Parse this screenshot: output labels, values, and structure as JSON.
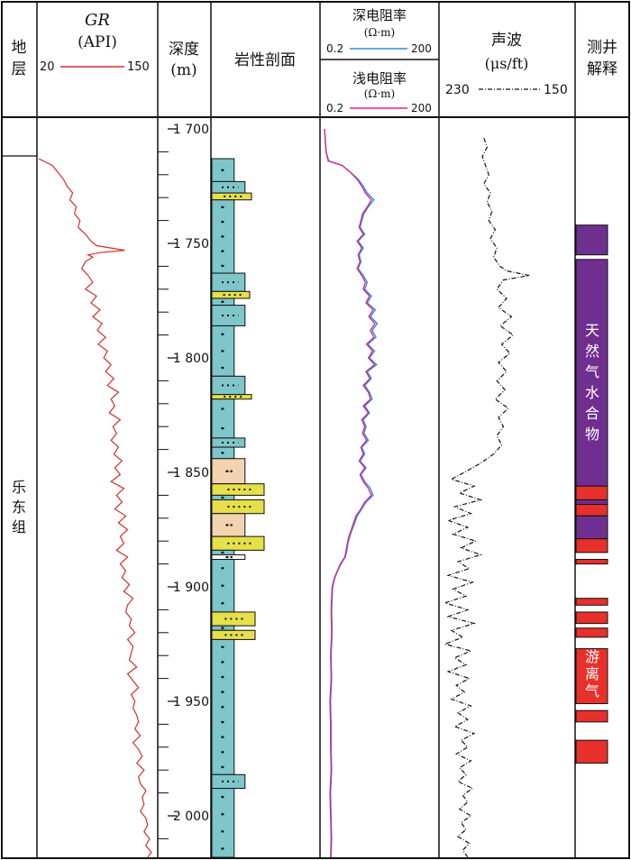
{
  "headers": {
    "formation": [
      "地",
      "层"
    ],
    "gr": {
      "title": "GR",
      "unit": "(API)",
      "min": "20",
      "max": "150"
    },
    "depth": {
      "title": "深度",
      "unit": "(m)"
    },
    "lithology": "岩性剖面",
    "deep_res": {
      "title": "深电阻率",
      "unit": "(Ω·m)",
      "min": "0.2",
      "max": "200"
    },
    "shallow_res": {
      "title": "浅电阻率",
      "unit": "(Ω·m)",
      "min": "0.2",
      "max": "200"
    },
    "sonic": {
      "title": "声波",
      "unit": "(μs/ft)",
      "min": "230",
      "max": "150"
    },
    "interp": [
      "测井",
      "解释"
    ]
  },
  "formation_name": [
    "乐",
    "东",
    "组"
  ],
  "depth_ticks": [
    "1 700",
    "1 750",
    "1 800",
    "1 850",
    "1 900",
    "1 950",
    "2 000"
  ],
  "interp_labels": {
    "hydrate": [
      "天",
      "然",
      "气",
      "水",
      "合",
      "物"
    ],
    "free_gas": [
      "游",
      "离",
      "气"
    ]
  },
  "colors": {
    "gr_curve": "#d0302a",
    "deep_curve": "#2a8fd6",
    "shallow_curve": "#e0208a",
    "sonic_curve": "#111111",
    "shale": "#7ec6c9",
    "sand_yellow": "#e6e04a",
    "sand_tan": "#f3d3b0",
    "hydrate": "#6f2f8f",
    "free_gas": "#e8302a"
  },
  "chart_data": {
    "type": "well-log",
    "depth_unit": "m",
    "depth_range": [
      1700,
      2020
    ],
    "formation_top": 1713,
    "gr": {
      "range": [
        20,
        150
      ],
      "depth": [
        1713,
        1716,
        1719,
        1722,
        1725,
        1728,
        1731,
        1734,
        1737,
        1740,
        1743,
        1746,
        1749,
        1751,
        1752,
        1753,
        1754,
        1755,
        1756,
        1758,
        1761,
        1764,
        1767,
        1770,
        1773,
        1776,
        1779,
        1782,
        1785,
        1788,
        1791,
        1794,
        1797,
        1800,
        1803,
        1806,
        1809,
        1812,
        1815,
        1818,
        1821,
        1824,
        1827,
        1830,
        1833,
        1836,
        1839,
        1842,
        1845,
        1848,
        1851,
        1854,
        1857,
        1860,
        1863,
        1866,
        1869,
        1872,
        1875,
        1878,
        1881,
        1884,
        1887,
        1890,
        1893,
        1896,
        1899,
        1902,
        1905,
        1908,
        1911,
        1914,
        1917,
        1920,
        1923,
        1926,
        1929,
        1932,
        1935,
        1938,
        1941,
        1944,
        1947,
        1950,
        1953,
        1956,
        1959,
        1962,
        1965,
        1968,
        1971,
        1974,
        1977,
        1980,
        1983,
        1986,
        1989,
        1992,
        1995,
        1998,
        2001,
        2004,
        2007,
        2010,
        2013,
        2016,
        2019
      ],
      "value": [
        21,
        36,
        42,
        48,
        52,
        58,
        55,
        62,
        60,
        66,
        64,
        72,
        78,
        84,
        100,
        115,
        88,
        75,
        80,
        72,
        68,
        75,
        80,
        72,
        84,
        78,
        88,
        80,
        90,
        85,
        94,
        86,
        96,
        92,
        100,
        94,
        103,
        96,
        108,
        100,
        104,
        98,
        110,
        102,
        106,
        100,
        108,
        103,
        112,
        104,
        110,
        100,
        114,
        106,
        112,
        104,
        116,
        108,
        118,
        110,
        114,
        106,
        118,
        110,
        116,
        112,
        120,
        114,
        124,
        118,
        116,
        122,
        120,
        126,
        118,
        124,
        122,
        120,
        128,
        118,
        124,
        130,
        122,
        126,
        124,
        128,
        130,
        126,
        132,
        124,
        130,
        134,
        128,
        136,
        130,
        132,
        138,
        134,
        136,
        132,
        138,
        140,
        136,
        142,
        138,
        144,
        140
      ]
    },
    "deep_resistivity": {
      "range": [
        0.2,
        200
      ],
      "depth": [
        1700,
        1705,
        1710,
        1714,
        1716,
        1719,
        1722,
        1725,
        1728,
        1731,
        1734,
        1737,
        1740,
        1743,
        1746,
        1749,
        1752,
        1755,
        1758,
        1761,
        1764,
        1767,
        1770,
        1773,
        1776,
        1779,
        1782,
        1785,
        1788,
        1791,
        1794,
        1797,
        1800,
        1803,
        1806,
        1809,
        1812,
        1815,
        1818,
        1821,
        1824,
        1827,
        1830,
        1833,
        1836,
        1839,
        1842,
        1845,
        1848,
        1851,
        1854,
        1857,
        1860,
        1863,
        1866,
        1869,
        1872,
        1875,
        1878,
        1881,
        1884,
        1887,
        1890,
        1893,
        1896,
        1900,
        1910,
        1920,
        1930,
        1940,
        1950,
        1960,
        1970,
        1980,
        1990,
        2000,
        2010,
        2019
      ],
      "value": [
        0.2,
        0.21,
        0.22,
        0.25,
        0.6,
        1.0,
        1.6,
        2.2,
        2.8,
        4.2,
        3.0,
        2.3,
        2.0,
        1.8,
        2.4,
        1.6,
        2.2,
        1.7,
        1.9,
        1.6,
        2.2,
        2.8,
        2.4,
        3.6,
        2.8,
        4.6,
        3.4,
        5.2,
        3.8,
        4.8,
        2.9,
        4.4,
        3.2,
        5.0,
        2.8,
        3.6,
        2.4,
        3.2,
        3.8,
        2.4,
        3.2,
        2.2,
        2.6,
        2.3,
        3.0,
        2.0,
        2.4,
        1.8,
        2.6,
        1.9,
        2.4,
        3.4,
        4.0,
        2.6,
        2.0,
        1.5,
        1.3,
        1.1,
        0.95,
        0.85,
        0.8,
        0.72,
        0.55,
        0.45,
        0.38,
        0.33,
        0.31,
        0.32,
        0.3,
        0.31,
        0.29,
        0.3,
        0.3,
        0.31,
        0.29,
        0.3,
        0.31,
        0.3
      ]
    },
    "shallow_resistivity": {
      "range": [
        0.2,
        200
      ],
      "depth": [
        1700,
        1705,
        1710,
        1714,
        1716,
        1719,
        1722,
        1725,
        1728,
        1731,
        1734,
        1737,
        1740,
        1743,
        1746,
        1749,
        1752,
        1755,
        1758,
        1761,
        1764,
        1767,
        1770,
        1773,
        1776,
        1779,
        1782,
        1785,
        1788,
        1791,
        1794,
        1797,
        1800,
        1803,
        1806,
        1809,
        1812,
        1815,
        1818,
        1821,
        1824,
        1827,
        1830,
        1833,
        1836,
        1839,
        1842,
        1845,
        1848,
        1851,
        1854,
        1857,
        1860,
        1863,
        1866,
        1869,
        1872,
        1875,
        1878,
        1881,
        1884,
        1887,
        1890,
        1893,
        1896,
        1900,
        1910,
        1920,
        1930,
        1940,
        1950,
        1960,
        1970,
        1980,
        1990,
        2000,
        2010,
        2019
      ],
      "value": [
        0.2,
        0.21,
        0.22,
        0.26,
        0.6,
        1.0,
        1.5,
        2.0,
        2.5,
        3.6,
        2.8,
        2.1,
        1.9,
        1.7,
        2.2,
        1.5,
        2.0,
        1.6,
        1.8,
        1.5,
        2.0,
        2.5,
        2.2,
        3.2,
        2.6,
        4.0,
        3.1,
        4.5,
        3.4,
        4.2,
        2.7,
        3.9,
        3.0,
        4.4,
        2.6,
        3.3,
        2.2,
        3.0,
        3.4,
        2.2,
        3.0,
        2.0,
        2.4,
        2.1,
        2.7,
        1.9,
        2.2,
        1.7,
        2.4,
        1.8,
        2.2,
        3.0,
        3.6,
        2.4,
        1.9,
        1.4,
        1.2,
        1.05,
        0.9,
        0.82,
        0.76,
        0.7,
        0.53,
        0.44,
        0.37,
        0.32,
        0.3,
        0.31,
        0.29,
        0.3,
        0.28,
        0.29,
        0.29,
        0.3,
        0.28,
        0.29,
        0.3,
        0.29
      ]
    },
    "sonic": {
      "range": [
        230,
        150
      ],
      "depth": [
        1704,
        1708,
        1712,
        1716,
        1720,
        1724,
        1728,
        1732,
        1736,
        1740,
        1744,
        1748,
        1752,
        1756,
        1760,
        1762,
        1764,
        1766,
        1770,
        1774,
        1778,
        1782,
        1786,
        1790,
        1794,
        1798,
        1802,
        1806,
        1810,
        1814,
        1818,
        1822,
        1826,
        1830,
        1834,
        1838,
        1842,
        1846,
        1850,
        1853,
        1856,
        1859,
        1862,
        1865,
        1868,
        1871,
        1874,
        1877,
        1880,
        1883,
        1886,
        1889,
        1892,
        1895,
        1898,
        1901,
        1904,
        1907,
        1910,
        1913,
        1916,
        1919,
        1922,
        1925,
        1928,
        1931,
        1934,
        1937,
        1940,
        1943,
        1946,
        1949,
        1952,
        1955,
        1958,
        1961,
        1964,
        1967,
        1970,
        1973,
        1976,
        1979,
        1982,
        1985,
        1988,
        1991,
        1994,
        1997,
        2000,
        2003,
        2006,
        2009,
        2012,
        2015,
        2018
      ],
      "value": [
        204,
        202,
        205,
        203,
        201,
        204,
        200,
        202,
        199,
        201,
        197,
        200,
        196,
        198,
        194,
        190,
        176,
        192,
        196,
        190,
        195,
        187,
        194,
        186,
        193,
        188,
        195,
        190,
        196,
        191,
        197,
        189,
        195,
        192,
        196,
        193,
        198,
        206,
        216,
        224,
        210,
        219,
        206,
        222,
        212,
        226,
        214,
        223,
        209,
        218,
        206,
        220,
        213,
        226,
        211,
        223,
        215,
        228,
        214,
        226,
        210,
        224,
        217,
        228,
        212,
        222,
        215,
        226,
        213,
        221,
        216,
        224,
        212,
        220,
        214,
        222,
        210,
        218,
        214,
        221,
        212,
        219,
        215,
        220,
        211,
        217,
        214,
        219,
        212,
        218,
        215,
        220,
        213,
        217,
        214
      ]
    },
    "lithology_layers": [
      {
        "top": 1713,
        "bottom": 1723,
        "type": "shale",
        "width": 0.62,
        "symbol": "dash"
      },
      {
        "top": 1723,
        "bottom": 1728,
        "type": "shale",
        "width": 0.92,
        "symbol": "dots"
      },
      {
        "top": 1728,
        "bottom": 1731,
        "type": "sand_yellow",
        "width": 1.1,
        "symbol": "dots"
      },
      {
        "top": 1731,
        "bottom": 1763,
        "type": "shale",
        "width": 0.62,
        "symbol": "dash"
      },
      {
        "top": 1763,
        "bottom": 1771,
        "type": "shale",
        "width": 0.92,
        "symbol": "dots"
      },
      {
        "top": 1771,
        "bottom": 1774,
        "type": "sand_yellow",
        "width": 1.05,
        "symbol": "dots"
      },
      {
        "top": 1774,
        "bottom": 1777,
        "type": "shale",
        "width": 0.62,
        "symbol": "dash"
      },
      {
        "top": 1777,
        "bottom": 1786,
        "type": "shale",
        "width": 0.92,
        "symbol": "dots"
      },
      {
        "top": 1786,
        "bottom": 1808,
        "type": "shale",
        "width": 0.62,
        "symbol": "dash"
      },
      {
        "top": 1808,
        "bottom": 1816,
        "type": "shale",
        "width": 0.92,
        "symbol": "dots"
      },
      {
        "top": 1816,
        "bottom": 1818,
        "type": "sand_yellow",
        "width": 1.1,
        "symbol": "dots"
      },
      {
        "top": 1818,
        "bottom": 1835,
        "type": "shale",
        "width": 0.62,
        "symbol": "dash"
      },
      {
        "top": 1835,
        "bottom": 1839,
        "type": "shale",
        "width": 0.92,
        "symbol": "dots"
      },
      {
        "top": 1839,
        "bottom": 1844,
        "type": "shale",
        "width": 0.62,
        "symbol": "dash"
      },
      {
        "top": 1844,
        "bottom": 1855,
        "type": "sand_tan",
        "width": 0.92,
        "symbol": "dash"
      },
      {
        "top": 1855,
        "bottom": 1860,
        "type": "sand_yellow",
        "width": 1.45,
        "symbol": "dots"
      },
      {
        "top": 1860,
        "bottom": 1862,
        "type": "shale",
        "width": 0.62,
        "symbol": "dash"
      },
      {
        "top": 1862,
        "bottom": 1868,
        "type": "sand_yellow",
        "width": 1.45,
        "symbol": "dots"
      },
      {
        "top": 1868,
        "bottom": 1878,
        "type": "sand_tan",
        "width": 0.92,
        "symbol": "dash"
      },
      {
        "top": 1878,
        "bottom": 1884,
        "type": "sand_yellow",
        "width": 1.45,
        "symbol": "dots"
      },
      {
        "top": 1884,
        "bottom": 1886,
        "type": "shale",
        "width": 0.62,
        "symbol": "dash"
      },
      {
        "top": 1886,
        "bottom": 1888,
        "type": "white",
        "width": 0.92,
        "symbol": "dash"
      },
      {
        "top": 1888,
        "bottom": 1911,
        "type": "shale",
        "width": 0.62,
        "symbol": "dash"
      },
      {
        "top": 1911,
        "bottom": 1917,
        "type": "sand_yellow",
        "width": 1.2,
        "symbol": "dots"
      },
      {
        "top": 1917,
        "bottom": 1919,
        "type": "shale",
        "width": 0.62,
        "symbol": "dash"
      },
      {
        "top": 1919,
        "bottom": 1923,
        "type": "sand_yellow",
        "width": 1.2,
        "symbol": "dots"
      },
      {
        "top": 1923,
        "bottom": 1982,
        "type": "shale",
        "width": 0.62,
        "symbol": "dash"
      },
      {
        "top": 1982,
        "bottom": 1988,
        "type": "shale",
        "width": 0.92,
        "symbol": "dots"
      },
      {
        "top": 1988,
        "bottom": 2020,
        "type": "shale",
        "width": 0.62,
        "symbol": "dash"
      }
    ],
    "interpretation": [
      {
        "top": 1742,
        "bottom": 1755,
        "type": "hydrate"
      },
      {
        "top": 1757,
        "bottom": 1856,
        "type": "hydrate"
      },
      {
        "top": 1856,
        "bottom": 1862,
        "type": "free_gas"
      },
      {
        "top": 1862,
        "bottom": 1864,
        "type": "hydrate"
      },
      {
        "top": 1864,
        "bottom": 1869,
        "type": "free_gas"
      },
      {
        "top": 1869,
        "bottom": 1879,
        "type": "hydrate"
      },
      {
        "top": 1879,
        "bottom": 1885,
        "type": "free_gas"
      },
      {
        "top": 1888,
        "bottom": 1890,
        "type": "free_gas"
      },
      {
        "top": 1905,
        "bottom": 1908,
        "type": "free_gas"
      },
      {
        "top": 1911,
        "bottom": 1916,
        "type": "free_gas"
      },
      {
        "top": 1918,
        "bottom": 1922,
        "type": "free_gas"
      },
      {
        "top": 1927,
        "bottom": 1951,
        "type": "free_gas"
      },
      {
        "top": 1954,
        "bottom": 1959,
        "type": "free_gas"
      },
      {
        "top": 1967,
        "bottom": 1977,
        "type": "free_gas"
      }
    ]
  }
}
